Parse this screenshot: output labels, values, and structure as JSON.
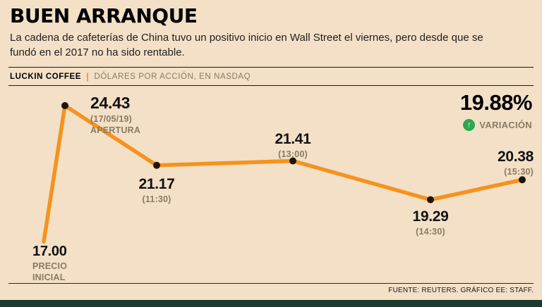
{
  "header": {
    "title": "BUEN ARRANQUE",
    "subtitle": "La cadena de cafeterías de China tuvo un positivo inicio en Wall Street el viernes, pero desde que se fundó en el 2017 no ha sido rentable.",
    "brand": "LUCKIN COFFEE",
    "separator": "|",
    "units": "DÓLARES POR ACCIÓN, EN NASDAQ"
  },
  "variation": {
    "value": "19.88%",
    "label": "VARIACIÓN",
    "arrow": "↑"
  },
  "footer": {
    "source": "FUENTE: REUTERS. GRÁFICO EE: STAFF."
  },
  "colors": {
    "background": "#f3e0c7",
    "line": "#f6921e",
    "dot": "#201408",
    "positive": "#2ca84e",
    "muted_text": "#8a7a64",
    "footer_bar": "#1c3a30"
  },
  "chart_data": {
    "type": "line",
    "title": "BUEN ARRANQUE",
    "series_name": "Luckin Coffee",
    "ylabel": "Dólares por acción",
    "exchange": "NASDAQ",
    "ylim": [
      17.0,
      24.43
    ],
    "grid": false,
    "legend": "none",
    "variation_pct": 19.88,
    "points": [
      {
        "x": "Precio inicial",
        "price": 17.0,
        "price_label": "17.00",
        "note1": "PRECIO",
        "note2": "INICIAL"
      },
      {
        "x": "Apertura 17/05/19",
        "price": 24.43,
        "price_label": "24.43",
        "note1": "(17/05/19)",
        "note2": "APERTURA"
      },
      {
        "x": "11:30",
        "price": 21.17,
        "price_label": "21.17",
        "note1": "(11:30)"
      },
      {
        "x": "13:00",
        "price": 21.41,
        "price_label": "21.41",
        "note1": "(13:00)"
      },
      {
        "x": "14:30",
        "price": 19.29,
        "price_label": "19.29",
        "note1": "(14:30)"
      },
      {
        "x": "15:30",
        "price": 20.38,
        "price_label": "20.38",
        "note1": "(15:30)"
      }
    ]
  }
}
